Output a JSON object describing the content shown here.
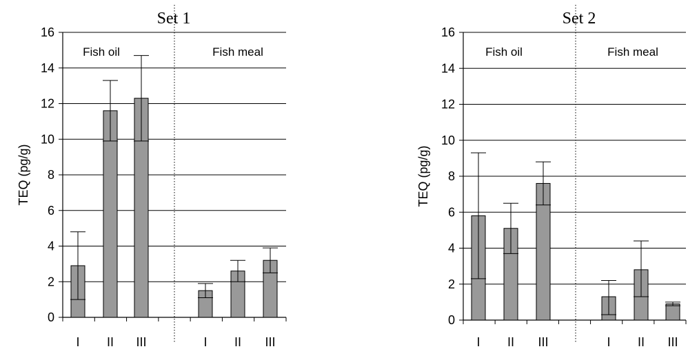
{
  "chart_data": [
    {
      "type": "bar",
      "title": "Set 1",
      "xlabel": "",
      "ylabel": "TEQ (pg/g)",
      "ylim": [
        0,
        16
      ],
      "yticks": [
        0,
        2,
        4,
        6,
        8,
        10,
        12,
        14,
        16
      ],
      "grid": true,
      "groups": [
        {
          "label": "Fish oil",
          "categories": [
            "I",
            "II",
            "III"
          ],
          "values": [
            2.9,
            11.6,
            12.3
          ],
          "error_low": [
            1.0,
            9.9,
            9.9
          ],
          "error_high": [
            4.8,
            13.3,
            14.7
          ]
        },
        {
          "label": "Fish meal",
          "categories": [
            "I",
            "II",
            "III"
          ],
          "values": [
            1.5,
            2.6,
            3.2
          ],
          "error_low": [
            1.1,
            2.0,
            2.5
          ],
          "error_high": [
            1.9,
            3.2,
            3.9
          ]
        }
      ]
    },
    {
      "type": "bar",
      "title": "Set 2",
      "xlabel": "",
      "ylabel": "TEQ (pg/g)",
      "ylim": [
        0,
        16
      ],
      "yticks": [
        0,
        2,
        4,
        6,
        8,
        10,
        12,
        14,
        16
      ],
      "grid": true,
      "groups": [
        {
          "label": "Fish oil",
          "categories": [
            "I",
            "II",
            "III"
          ],
          "values": [
            5.8,
            5.1,
            7.6
          ],
          "error_low": [
            2.3,
            3.7,
            6.4
          ],
          "error_high": [
            9.3,
            6.5,
            8.8
          ]
        },
        {
          "label": "Fish meal",
          "categories": [
            "I",
            "II",
            "III"
          ],
          "values": [
            1.3,
            2.8,
            0.9
          ],
          "error_low": [
            0.3,
            1.3,
            0.8
          ],
          "error_high": [
            2.2,
            4.4,
            1.0
          ]
        }
      ]
    }
  ],
  "colors": {
    "bar_fill": "#999999",
    "bar_stroke": "#000000",
    "grid": "#000000",
    "divider": "#000000"
  }
}
